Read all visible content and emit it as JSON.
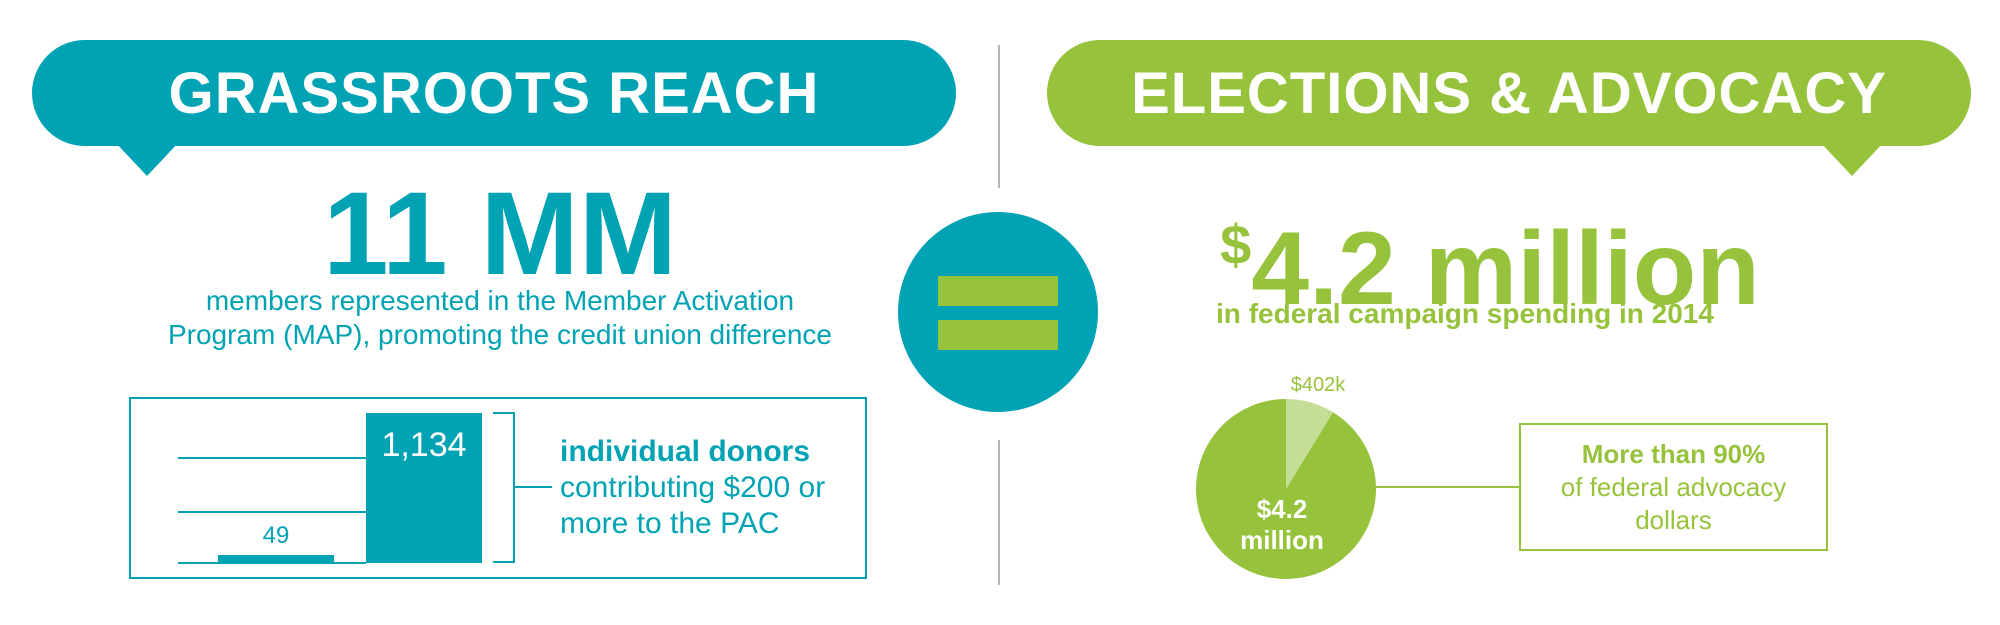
{
  "left": {
    "header": "GRASSROOTS REACH",
    "headline": "11 MM",
    "subtext": "members represented in the Member Activation Program (MAP), promoting the credit union difference",
    "donors_highlight": "individual donors",
    "donors_rest": "contributing $200 or more to the PAC"
  },
  "right": {
    "header": "ELECTIONS & ADVOCACY",
    "headline_symbol": "$",
    "headline_value": "4.2 million",
    "subtext": "in federal campaign spending in 2014",
    "advocacy_highlight": "More than 90%",
    "advocacy_rest": "of federal advocacy dollars"
  },
  "colors": {
    "teal": "#00a3b4",
    "green": "#97c33c",
    "light_green": "#c5de95",
    "divider": "#b5b5b5"
  },
  "icons": {
    "equals": "equals-icon"
  },
  "chart_data": [
    {
      "type": "bar",
      "categories": [
        "",
        ""
      ],
      "values": [
        49,
        1134
      ],
      "data_labels": [
        "49",
        "1,134"
      ],
      "grid": true
    },
    {
      "type": "pie",
      "values": [
        4200,
        402
      ],
      "data_labels": [
        "$4.2 million",
        "$402k"
      ],
      "labels_split": [
        [
          "$4.2",
          "million"
        ],
        [
          "$402k"
        ]
      ]
    }
  ]
}
